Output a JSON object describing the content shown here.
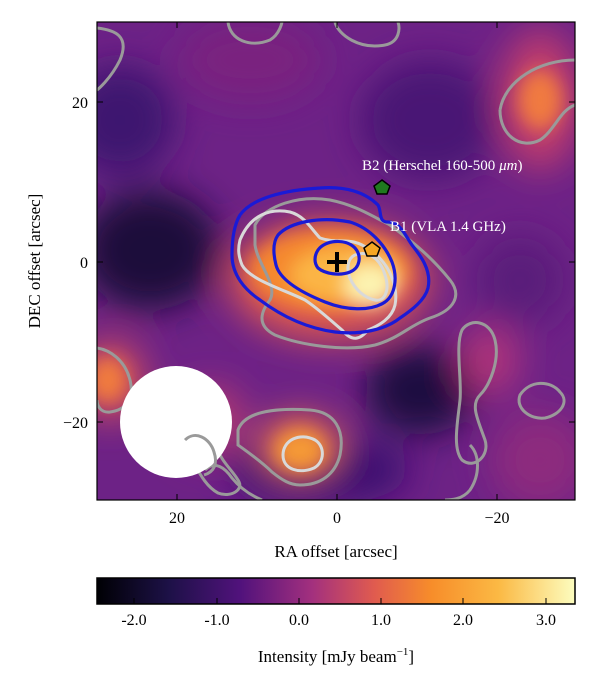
{
  "chart_data": {
    "type": "heatmap",
    "xlabel": "RA offset [arcsec]",
    "ylabel": "DEC offset [arcsec]",
    "xlim": [
      30,
      -30
    ],
    "ylim": [
      -30,
      30
    ],
    "xticks": [
      {
        "value": 20,
        "label": "20"
      },
      {
        "value": 0,
        "label": "0"
      },
      {
        "value": -20,
        "label": "−20"
      }
    ],
    "yticks": [
      {
        "value": 20,
        "label": "20"
      },
      {
        "value": 0,
        "label": "0"
      },
      {
        "value": -20,
        "label": "−20"
      }
    ],
    "colorbar": {
      "label": "Intensity [mJy beam",
      "label_sup": "−1",
      "label_end": "]",
      "range": [
        -2.5,
        3.3
      ],
      "ticks": [
        {
          "value": -2.0,
          "label": "-2.0"
        },
        {
          "value": -1.0,
          "label": "-1.0"
        },
        {
          "value": 0.0,
          "label": "0.0"
        },
        {
          "value": 1.0,
          "label": "1.0"
        },
        {
          "value": 2.0,
          "label": "2.0"
        },
        {
          "value": 3.0,
          "label": "3.0"
        }
      ],
      "colormap": [
        "#000004",
        "#3b0f70",
        "#8c2981",
        "#de4968",
        "#fe9f6d",
        "#fcfdbf"
      ]
    },
    "annotations": [
      {
        "text": "B2 (Herschel 160-500 ",
        "unit": "μm",
        "end": ")",
        "x": 5.5,
        "y": 9.3,
        "marker": "pentagon",
        "color": "#1f7a1f"
      },
      {
        "text": "B1 (VLA 1.4 GHz)",
        "x": 4.5,
        "y": 1.5,
        "marker": "pentagon",
        "color": "#f5a623"
      }
    ],
    "center_marker": {
      "x": 0,
      "y": 0,
      "shape": "plus"
    },
    "beam": {
      "x": 20,
      "y": -20,
      "diameter_arcsec": 14,
      "color": "#ffffff"
    },
    "contour_colors": {
      "gray": "#9a9a9a",
      "light": "#d9d9d9",
      "blue": "#1a1ad6"
    }
  }
}
